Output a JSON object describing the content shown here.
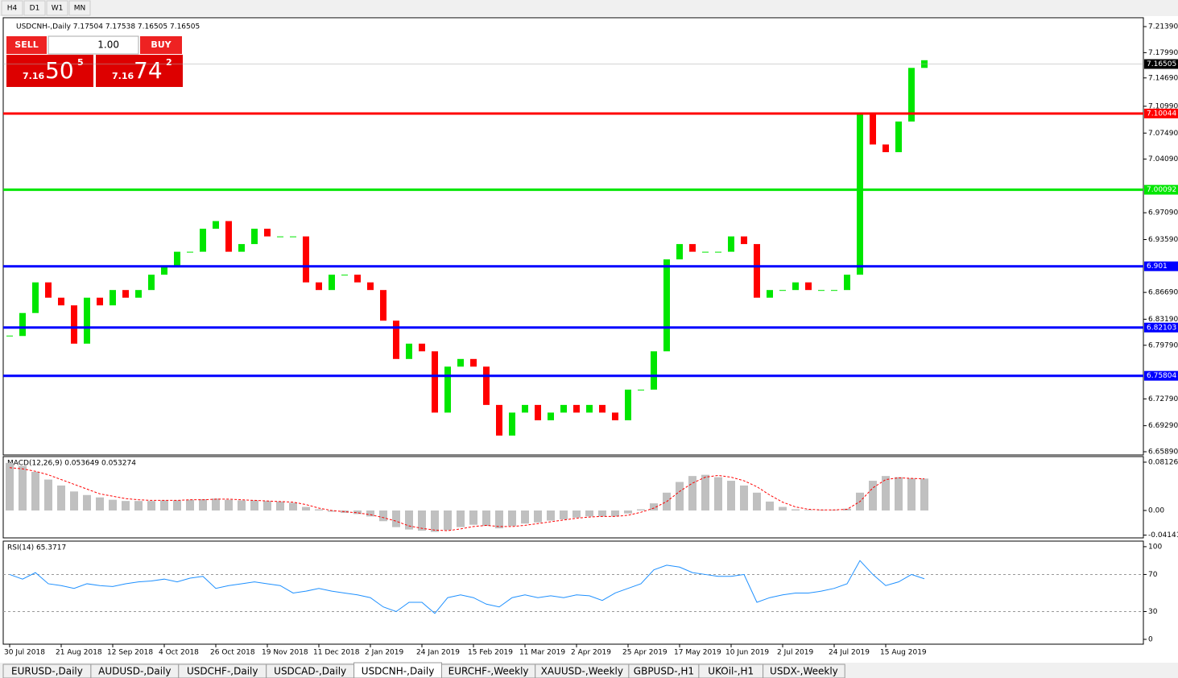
{
  "toolbar": {
    "timeframes": [
      "H4",
      "D1",
      "W1",
      "MN"
    ]
  },
  "trade_panel": {
    "sell": "SELL",
    "lot": "1.00",
    "buy": "BUY",
    "sell_price": {
      "prefix": "7.16",
      "big": "50",
      "sup": "5"
    },
    "buy_price": {
      "prefix": "7.16",
      "big": "74",
      "sup": "2"
    }
  },
  "chart_data": [
    {
      "type": "candlestick",
      "title": "USDCNH-,Daily  7.17504 7.17538 7.16505 7.16505",
      "categories": [
        "30 Jul 2018",
        null,
        null,
        null,
        "21 Aug 2018",
        null,
        null,
        null,
        "12 Sep 2018",
        null,
        null,
        null,
        "4 Oct 2018",
        null,
        null,
        null,
        "26 Oct 2018",
        null,
        null,
        null,
        "19 Nov 2018",
        null,
        null,
        null,
        "11 Dec 2018",
        null,
        null,
        null,
        "2 Jan 2019",
        null,
        null,
        null,
        "24 Jan 2019",
        null,
        null,
        null,
        "15 Feb 2019",
        null,
        null,
        null,
        "11 Mar 2019",
        null,
        null,
        null,
        "2 Apr 2019",
        null,
        null,
        null,
        "25 Apr 2019",
        null,
        null,
        null,
        "17 May 2019",
        null,
        null,
        null,
        "10 Jun 2019",
        null,
        null,
        null,
        "2 Jul 2019",
        null,
        null,
        null,
        "24 Jul 2019",
        null,
        null,
        null,
        "15 Aug 2019",
        null,
        null,
        null
      ],
      "closes": [
        6.81,
        6.84,
        6.88,
        6.86,
        6.85,
        6.8,
        6.86,
        6.85,
        6.87,
        6.86,
        6.87,
        6.89,
        6.9,
        6.92,
        6.92,
        6.95,
        6.96,
        6.92,
        6.93,
        6.95,
        6.94,
        6.94,
        6.94,
        6.88,
        6.87,
        6.89,
        6.89,
        6.88,
        6.87,
        6.83,
        6.78,
        6.8,
        6.79,
        6.71,
        6.77,
        6.78,
        6.77,
        6.72,
        6.68,
        6.71,
        6.72,
        6.7,
        6.71,
        6.72,
        6.71,
        6.72,
        6.71,
        6.7,
        6.74,
        6.74,
        6.79,
        6.91,
        6.93,
        6.92,
        6.92,
        6.92,
        6.94,
        6.93,
        6.86,
        6.87,
        6.87,
        6.88,
        6.87,
        6.87,
        6.87,
        6.89,
        7.1,
        7.06,
        7.05,
        7.09,
        7.16,
        7.17
      ],
      "up_color": "#00e600",
      "down_color": "#ff0000",
      "ylim": [
        6.6547,
        7.2255
      ],
      "yticks": [
        {
          "value": 7.2139,
          "label": "7.21390"
        },
        {
          "value": 7.1799,
          "label": "7.17990"
        },
        {
          "value": 7.1469,
          "label": "7.14690"
        },
        {
          "value": 7.1099,
          "label": "7.10990"
        },
        {
          "value": 7.0749,
          "label": "7.07490"
        },
        {
          "value": 7.0409,
          "label": "7.04090"
        },
        {
          "value": 6.9709,
          "label": "6.97090"
        },
        {
          "value": 6.9359,
          "label": "6.93590"
        },
        {
          "value": 6.8669,
          "label": "6.86690"
        },
        {
          "value": 6.8319,
          "label": "6.83190"
        },
        {
          "value": 6.7979,
          "label": "6.79790"
        },
        {
          "value": 6.7279,
          "label": "6.72790"
        },
        {
          "value": 6.6929,
          "label": "6.69290"
        },
        {
          "value": 6.6589,
          "label": "6.65890"
        }
      ],
      "current_price": 7.16505,
      "levels": [
        {
          "value": 7.10044,
          "color": "#ff0000"
        },
        {
          "value": 7.00092,
          "color": "#00e600"
        },
        {
          "value": 6.901,
          "color": "#0000ff"
        },
        {
          "value": 6.82103,
          "color": "#0000ff"
        },
        {
          "value": 6.75804,
          "color": "#0000ff"
        }
      ]
    },
    {
      "type": "bar",
      "title": "MACD(12,26,9) 0.053649 0.053274",
      "values": [
        0.08,
        0.075,
        0.065,
        0.052,
        0.042,
        0.032,
        0.026,
        0.022,
        0.018,
        0.016,
        0.016,
        0.016,
        0.017,
        0.017,
        0.018,
        0.019,
        0.02,
        0.018,
        0.017,
        0.017,
        0.016,
        0.015,
        0.013,
        0.006,
        0.002,
        -0.002,
        -0.004,
        -0.006,
        -0.01,
        -0.018,
        -0.028,
        -0.032,
        -0.034,
        -0.036,
        -0.033,
        -0.028,
        -0.024,
        -0.026,
        -0.03,
        -0.026,
        -0.022,
        -0.02,
        -0.017,
        -0.015,
        -0.012,
        -0.01,
        -0.01,
        -0.01,
        -0.005,
        0.002,
        0.012,
        0.03,
        0.048,
        0.058,
        0.06,
        0.056,
        0.05,
        0.042,
        0.03,
        0.015,
        0.006,
        0.002,
        0.001,
        0.001,
        0.001,
        0.003,
        0.03,
        0.05,
        0.058,
        0.056,
        0.054,
        0.053649
      ],
      "signal": [
        0.072,
        0.07,
        0.066,
        0.06,
        0.052,
        0.044,
        0.036,
        0.028,
        0.024,
        0.02,
        0.018,
        0.017,
        0.017,
        0.017,
        0.018,
        0.018,
        0.019,
        0.019,
        0.018,
        0.017,
        0.016,
        0.015,
        0.014,
        0.01,
        0.004,
        0.0,
        -0.002,
        -0.004,
        -0.007,
        -0.012,
        -0.018,
        -0.026,
        -0.03,
        -0.033,
        -0.034,
        -0.031,
        -0.027,
        -0.025,
        -0.027,
        -0.027,
        -0.025,
        -0.022,
        -0.019,
        -0.016,
        -0.013,
        -0.011,
        -0.01,
        -0.01,
        -0.008,
        -0.003,
        0.004,
        0.015,
        0.032,
        0.046,
        0.056,
        0.059,
        0.056,
        0.05,
        0.04,
        0.026,
        0.014,
        0.006,
        0.002,
        0.001,
        0.001,
        0.002,
        0.015,
        0.038,
        0.052,
        0.055,
        0.054,
        0.053274
      ],
      "color": "#c0c0c0",
      "signal_color": "#ff0000",
      "ylim": [
        -0.0461,
        0.0907
      ],
      "yticks": [
        0.081265,
        {
          "value": 0,
          "label": "0.00"
        },
        -0.041412
      ]
    },
    {
      "type": "line",
      "title": "RSI(14) 65.3717",
      "values": [
        70,
        65,
        72,
        60,
        58,
        55,
        60,
        58,
        57,
        60,
        62,
        63,
        65,
        62,
        66,
        68,
        55,
        58,
        60,
        62,
        60,
        58,
        50,
        52,
        55,
        52,
        50,
        48,
        45,
        35,
        30,
        40,
        40,
        28,
        45,
        48,
        45,
        38,
        35,
        45,
        48,
        45,
        47,
        45,
        48,
        47,
        42,
        50,
        55,
        60,
        75,
        80,
        78,
        72,
        70,
        68,
        68,
        70,
        40,
        45,
        48,
        50,
        50,
        52,
        55,
        60,
        85,
        70,
        58,
        62,
        70,
        65.3717
      ],
      "color": "#1e90ff",
      "ylim": [
        -5.2,
        106
      ],
      "yticks": [
        100,
        70,
        30,
        0
      ],
      "grid_levels": [
        70,
        30
      ]
    }
  ],
  "tabs": [
    "EURUSD-,Daily",
    "AUDUSD-,Daily",
    "USDCHF-,Daily",
    "USDCAD-,Daily",
    "USDCNH-,Daily",
    "EURCHF-,Weekly",
    "XAUUSD-,Weekly",
    "GBPUSD-,H1",
    "UKOil-,H1",
    "USDX-,Weekly"
  ]
}
